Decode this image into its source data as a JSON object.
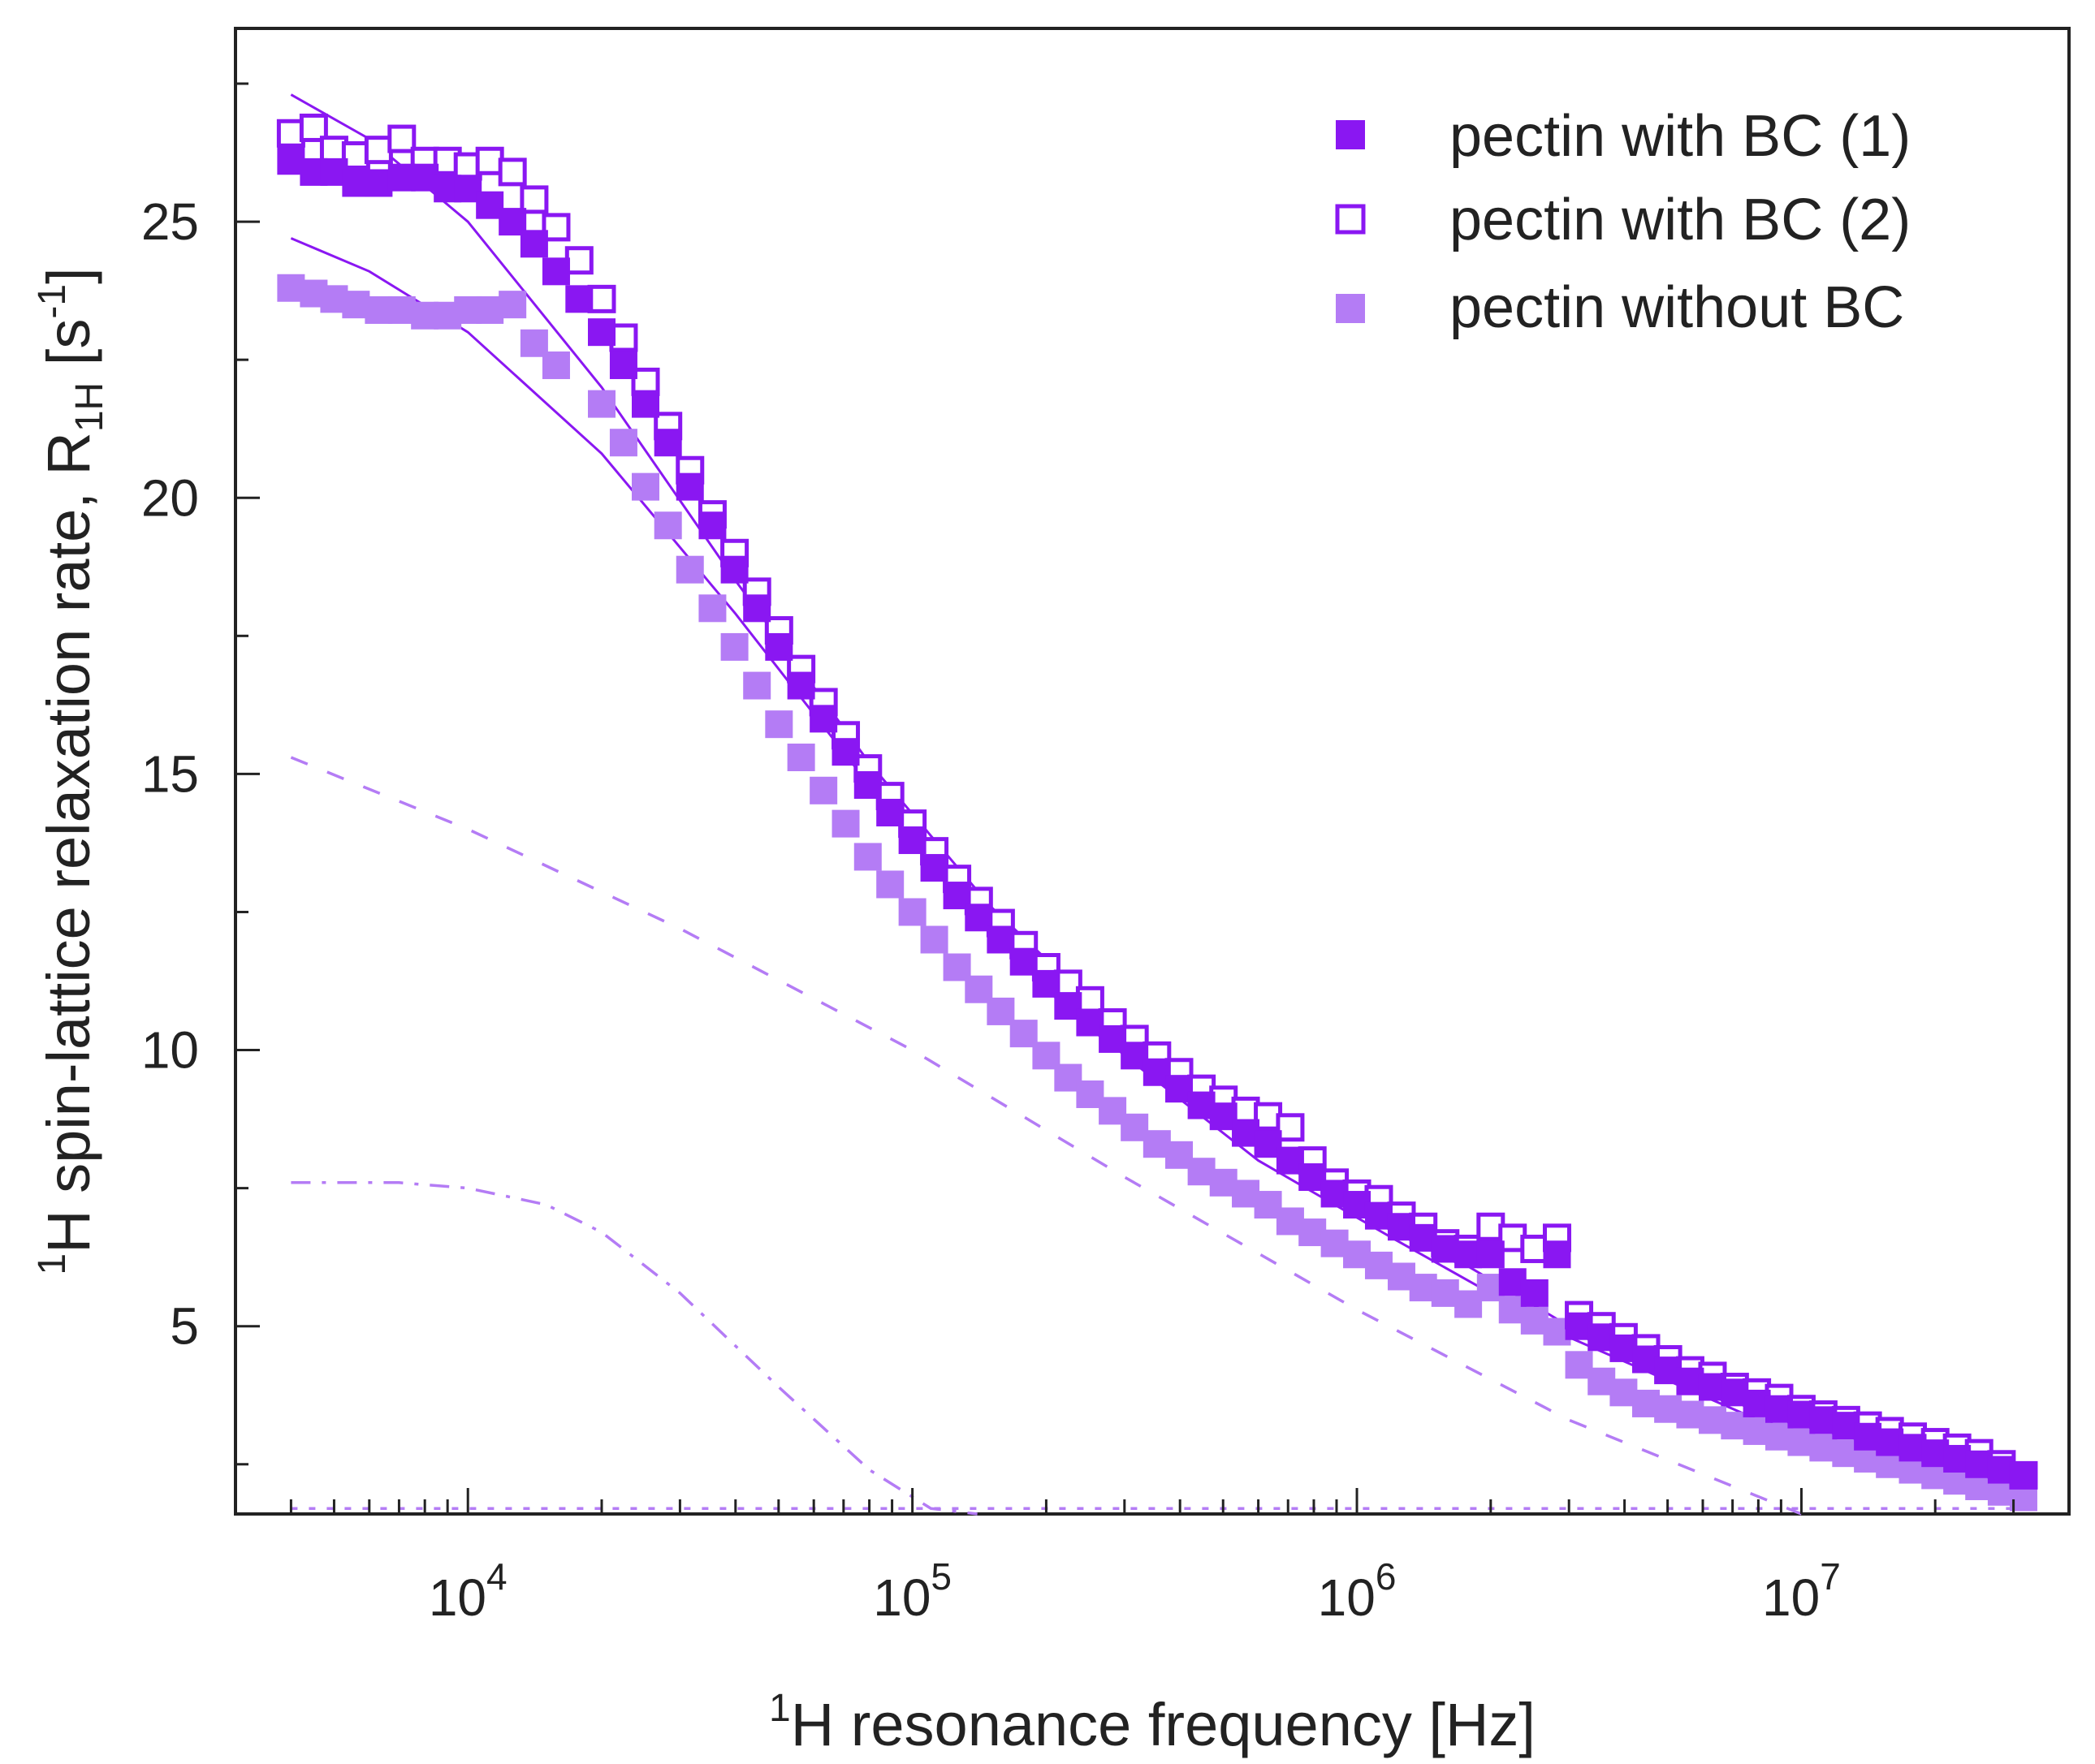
{
  "chart_data": {
    "type": "scatter",
    "title": "",
    "xlabel": {
      "sup": "1",
      "main": "H resonance frequency [Hz]"
    },
    "ylabel": {
      "sup_pre": "1",
      "main": "H spin-lattice relaxation rate, R",
      "sub": "1H",
      "unit_open": " [s",
      "unit_sup": "-1",
      "unit_close": "]"
    },
    "xscale": "log",
    "xlim": [
      3000,
      40000000
    ],
    "ylim": [
      1.6,
      28.5
    ],
    "x_ticks": [
      {
        "value": 10000,
        "base": "10",
        "exp": "4"
      },
      {
        "value": 100000,
        "base": "10",
        "exp": "5"
      },
      {
        "value": 1000000,
        "base": "10",
        "exp": "6"
      },
      {
        "value": 10000000,
        "base": "10",
        "exp": "7"
      }
    ],
    "y_ticks": [
      {
        "value": 5,
        "label": "5"
      },
      {
        "value": 10,
        "label": "10"
      },
      {
        "value": 15,
        "label": "15"
      },
      {
        "value": 20,
        "label": "20"
      },
      {
        "value": 25,
        "label": "25"
      }
    ],
    "y_minor_ticks": [
      2.5,
      7.5,
      12.5,
      17.5,
      22.5,
      27.5
    ],
    "grid": false,
    "legend_position": "top-right",
    "x": [
      4000,
      4500,
      5000,
      5600,
      6300,
      7100,
      8000,
      9000,
      10000,
      11200,
      12600,
      14100,
      15800,
      17800,
      20000,
      22400,
      25100,
      28200,
      31600,
      35500,
      39800,
      44700,
      50100,
      56200,
      63100,
      70800,
      79400,
      89100,
      100000,
      112000,
      126000,
      141000,
      158000,
      178000,
      200000,
      224000,
      251000,
      282000,
      316000,
      355000,
      398000,
      447000,
      501000,
      562000,
      631000,
      708000,
      794000,
      891000,
      1000000,
      1120000,
      1260000,
      1410000,
      1580000,
      1780000,
      2000000,
      2240000,
      2510000,
      2820000,
      3160000,
      3550000,
      3980000,
      4470000,
      5010000,
      5620000,
      6310000,
      7080000,
      7940000,
      8910000,
      10000000,
      11200000,
      12600000,
      14100000,
      15800000,
      17800000,
      20000000,
      22400000,
      25100000,
      28200000,
      31600000
    ],
    "series": [
      {
        "name": "pectin with BC (1)",
        "marker": "filled-square",
        "color": "#8a17f2",
        "values": [
          26.1,
          25.9,
          25.9,
          25.7,
          25.7,
          25.8,
          25.8,
          25.6,
          25.6,
          25.3,
          25.0,
          24.6,
          24.1,
          23.6,
          23.0,
          22.4,
          21.7,
          21.0,
          20.2,
          19.5,
          18.7,
          18.0,
          17.3,
          16.6,
          16.0,
          15.4,
          14.8,
          14.3,
          13.8,
          13.3,
          12.8,
          12.4,
          12.0,
          11.6,
          11.2,
          10.8,
          10.5,
          10.2,
          9.9,
          9.6,
          9.3,
          9.0,
          8.8,
          8.5,
          8.3,
          8.0,
          7.7,
          7.4,
          7.2,
          7.0,
          6.8,
          6.6,
          6.4,
          6.3,
          6.3,
          5.8,
          5.6,
          6.3,
          5.0,
          4.8,
          4.6,
          4.4,
          4.2,
          4.0,
          3.9,
          3.8,
          3.6,
          3.5,
          3.4,
          3.3,
          3.2,
          3.0,
          2.9,
          2.8,
          2.7,
          2.6,
          2.5,
          2.4,
          2.3
        ]
      },
      {
        "name": "pectin with BC (2)",
        "marker": "open-square",
        "color": "#8a17f2",
        "values": [
          26.6,
          26.7,
          26.3,
          26.2,
          26.3,
          26.5,
          26.1,
          26.1,
          26.0,
          26.1,
          25.9,
          25.4,
          24.9,
          24.3,
          23.6,
          22.9,
          22.1,
          21.3,
          20.5,
          19.7,
          19.0,
          18.3,
          17.6,
          16.9,
          16.3,
          15.7,
          15.1,
          14.6,
          14.1,
          13.6,
          13.1,
          12.7,
          12.3,
          11.9,
          11.5,
          11.2,
          10.9,
          10.5,
          10.2,
          9.9,
          9.6,
          9.3,
          9.1,
          8.9,
          8.8,
          8.6,
          8.0,
          7.6,
          7.4,
          7.3,
          7.0,
          6.8,
          6.5,
          6.4,
          6.8,
          6.6,
          6.4,
          6.6,
          5.2,
          5.0,
          4.8,
          4.6,
          4.4,
          4.2,
          4.1,
          3.9,
          3.8,
          3.7,
          3.5,
          3.4,
          3.3,
          3.2,
          3.1,
          3.0,
          2.9,
          2.8,
          2.7,
          2.5,
          2.3
        ]
      },
      {
        "name": "pectin without BC",
        "marker": "filled-square",
        "color": "#b47cf5",
        "values": [
          23.8,
          23.7,
          23.6,
          23.5,
          23.4,
          23.4,
          23.3,
          23.3,
          23.4,
          23.4,
          23.5,
          22.8,
          22.4,
          null,
          21.7,
          21.0,
          20.2,
          19.5,
          18.7,
          18.0,
          17.3,
          16.6,
          15.9,
          15.3,
          14.7,
          14.1,
          13.5,
          13.0,
          12.5,
          12.0,
          11.5,
          11.1,
          10.7,
          10.3,
          9.9,
          9.5,
          9.2,
          8.9,
          8.6,
          8.3,
          8.1,
          7.8,
          7.6,
          7.4,
          7.2,
          6.9,
          6.7,
          6.5,
          6.3,
          6.1,
          5.9,
          5.7,
          5.6,
          5.4,
          5.7,
          5.3,
          5.1,
          4.9,
          4.3,
          4.0,
          3.8,
          3.6,
          3.5,
          3.4,
          3.3,
          3.2,
          3.1,
          3.0,
          2.9,
          2.8,
          2.7,
          2.6,
          2.5,
          2.4,
          2.3,
          2.2,
          2.1,
          2.0,
          1.9
        ]
      }
    ],
    "fit_lines": [
      {
        "name": "fit-with-bc",
        "style": "solid",
        "color": "#8a17f2",
        "x": [
          4000,
          6000,
          10000,
          20000,
          40000,
          80000,
          150000,
          300000,
          600000,
          1200000,
          3000000,
          8000000,
          30000000
        ],
        "values": [
          27.3,
          26.5,
          25.0,
          22.0,
          18.5,
          15.2,
          12.6,
          10.3,
          8.4,
          6.9,
          5.0,
          3.5,
          2.1
        ]
      },
      {
        "name": "fit-without-bc",
        "style": "solid",
        "color": "#8a17f2",
        "x": [
          4000,
          6000,
          10000,
          20000,
          40000,
          80000,
          150000,
          300000,
          600000,
          1200000,
          3000000,
          8000000,
          30000000
        ],
        "values": [
          24.7,
          24.1,
          23.0,
          20.8,
          17.9,
          14.8,
          12.2,
          9.9,
          8.0,
          6.6,
          4.8,
          3.3,
          2.0
        ]
      },
      {
        "name": "component-dashed",
        "style": "dashed",
        "color": "#b47cf5",
        "x": [
          4000,
          10000,
          30000,
          100000,
          300000,
          1000000,
          3000000,
          10000000
        ],
        "values": [
          15.3,
          14.0,
          12.2,
          10.0,
          7.7,
          5.3,
          3.3,
          1.6
        ]
      },
      {
        "name": "component-dash-dot",
        "style": "dash-dot",
        "color": "#b47cf5",
        "x": [
          4000,
          7000,
          10000,
          15000,
          20000,
          30000,
          50000,
          80000,
          110000,
          140000
        ],
        "values": [
          7.6,
          7.6,
          7.5,
          7.2,
          6.7,
          5.6,
          3.9,
          2.4,
          1.7,
          1.6
        ]
      },
      {
        "name": "constant-dotted",
        "style": "dotted",
        "color": "#b47cf5",
        "x": [
          4000,
          31600000
        ],
        "values": [
          1.7,
          1.7
        ]
      }
    ]
  }
}
